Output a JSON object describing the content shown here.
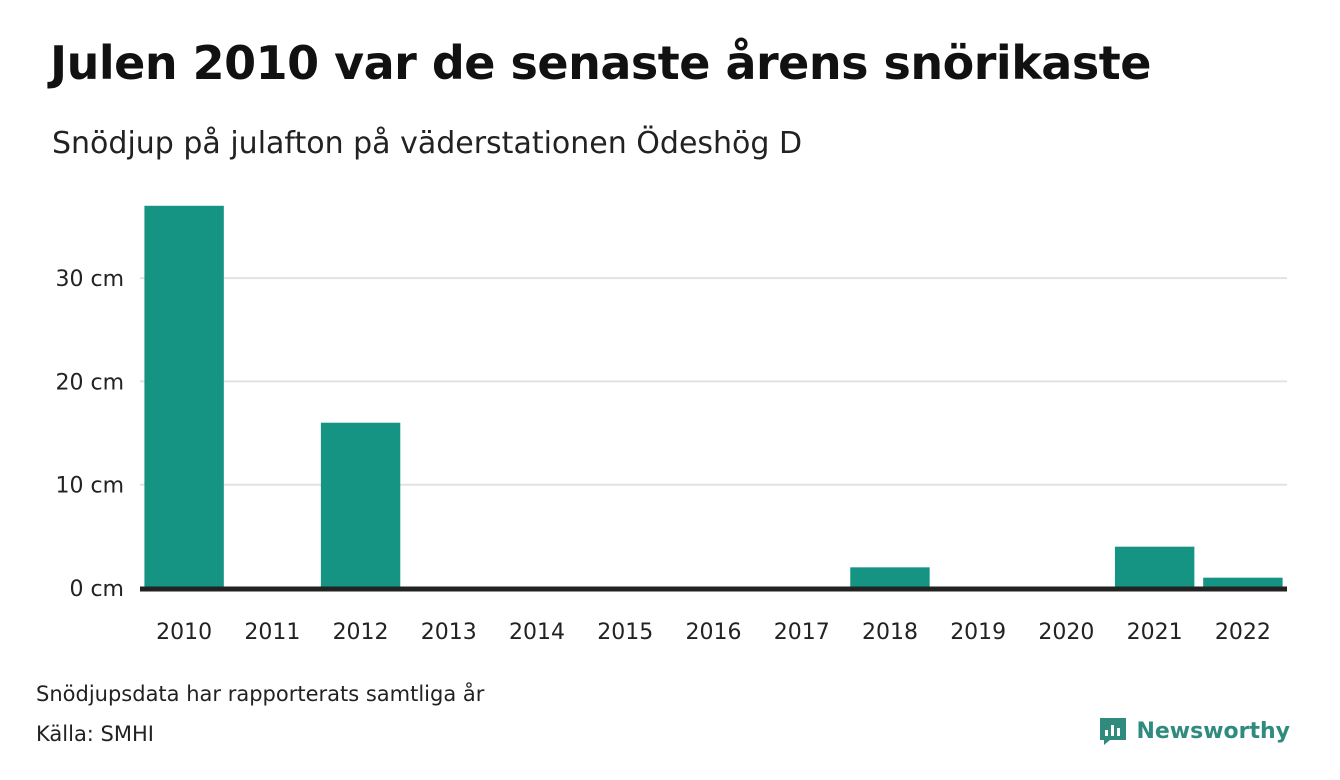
{
  "header": {
    "title": "Julen 2010 var de senaste årens snörikaste",
    "subtitle": "Snödjup på julafton på väderstationen Ödeshög D"
  },
  "footer": {
    "note": "Snödjupsdata har rapporterats samtliga år",
    "source": "Källa: SMHI",
    "brand": "Newsworthy"
  },
  "colors": {
    "bar": "#159484",
    "grid": "#e2e2e2",
    "axis": "#222222",
    "brand": "#2e8b7d"
  },
  "chart_data": {
    "type": "bar",
    "title": "Julen 2010 var de senaste årens snörikaste",
    "subtitle": "Snödjup på julafton på väderstationen Ödeshög D",
    "categories": [
      "2010",
      "2011",
      "2012",
      "2013",
      "2014",
      "2015",
      "2016",
      "2017",
      "2018",
      "2019",
      "2020",
      "2021",
      "2022"
    ],
    "values": [
      37,
      0,
      16,
      0,
      0,
      0,
      0,
      0,
      2,
      0,
      0,
      4,
      1
    ],
    "yticks": [
      0,
      10,
      20,
      30
    ],
    "ytick_labels": [
      "0 cm",
      "10 cm",
      "20 cm",
      "30 cm"
    ],
    "ylim": [
      0,
      37
    ],
    "unit": "cm",
    "grid": true,
    "legend": false
  }
}
